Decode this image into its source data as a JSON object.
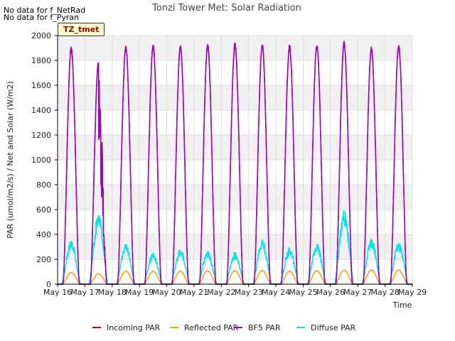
{
  "notes": [
    "No data for f_NetRad",
    "No data for f_Pyran"
  ],
  "site_tag": "TZ_tmet",
  "chart_data": {
    "type": "line",
    "title": "Tonzi Tower Met: Solar Radiation",
    "xlabel": "Time",
    "ylabel": "PAR (umol/m2/s) / Net and Solar (W/m2)",
    "ylim": [
      0,
      2000
    ],
    "xlim": [
      16,
      29
    ],
    "yticks": [
      0,
      200,
      400,
      600,
      800,
      1000,
      1200,
      1400,
      1600,
      1800,
      2000
    ],
    "xtick_labels": [
      "May 16",
      "May 17",
      "May 18",
      "May 19",
      "May 20",
      "May 21",
      "May 22",
      "May 23",
      "May 24",
      "May 25",
      "May 26",
      "May 27",
      "May 28",
      "May 29"
    ],
    "grid": true,
    "legend_position": "bottom",
    "daily_peaks": {
      "days": [
        16.5,
        17.5,
        18.5,
        19.5,
        20.5,
        21.5,
        22.5,
        23.5,
        24.5,
        25.5,
        26.5,
        27.5,
        28.5
      ],
      "incoming_par": [
        1900,
        1800,
        1920,
        1930,
        1925,
        1930,
        1940,
        1940,
        1930,
        1940,
        1950,
        1910,
        1940
      ],
      "bf5_par": [
        1910,
        1800,
        1910,
        1935,
        1930,
        1935,
        1945,
        1935,
        1925,
        1935,
        1960,
        1915,
        1930
      ],
      "reflected_par": [
        95,
        85,
        105,
        105,
        105,
        108,
        110,
        110,
        105,
        110,
        115,
        115,
        115
      ],
      "diffuse_par": [
        350,
        590,
        330,
        260,
        290,
        270,
        260,
        370,
        300,
        330,
        610,
        380,
        350
      ]
    },
    "series": [
      {
        "name": "Incoming PAR",
        "color": "#cc0000"
      },
      {
        "name": "Reflected PAR",
        "color": "#ff9900"
      },
      {
        "name": "BF5 PAR",
        "color": "#9900cc"
      },
      {
        "name": "Diffuse PAR",
        "color": "#00e5ee"
      }
    ]
  }
}
